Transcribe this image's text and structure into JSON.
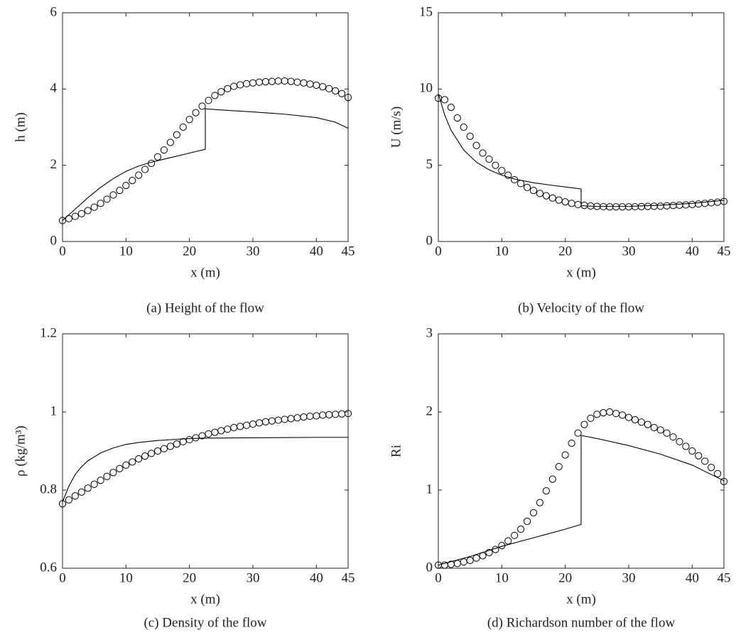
{
  "chart_data": [
    {
      "type": "line",
      "title": "(a) Height of the flow",
      "xlabel": "x (m)",
      "ylabel": "h (m)",
      "xlim": [
        0,
        45
      ],
      "xticks": [
        0,
        10,
        20,
        30,
        40,
        45
      ],
      "ylim": [
        0,
        6
      ],
      "yticks": [
        0,
        2,
        4,
        6
      ],
      "series": [
        {
          "style": "line",
          "color": "#000000",
          "x": [
            0,
            2,
            4,
            6,
            8,
            10,
            12,
            14,
            16,
            18,
            20,
            22.5,
            22.5,
            25,
            30,
            35,
            40,
            43,
            45
          ],
          "values": [
            0.55,
            0.85,
            1.15,
            1.42,
            1.65,
            1.84,
            1.98,
            2.08,
            2.16,
            2.24,
            2.32,
            2.42,
            3.48,
            3.45,
            3.4,
            3.34,
            3.25,
            3.13,
            2.97
          ]
        },
        {
          "style": "marker",
          "color": "#000000",
          "x": [
            0,
            1,
            2,
            3,
            4,
            5,
            6,
            7,
            8,
            9,
            10,
            11,
            12,
            13,
            14,
            15,
            16,
            17,
            18,
            19,
            20,
            21,
            22,
            23,
            24,
            25,
            26,
            27,
            28,
            29,
            30,
            31,
            32,
            33,
            34,
            35,
            36,
            37,
            38,
            39,
            40,
            41,
            42,
            43,
            44,
            45
          ],
          "values": [
            0.55,
            0.6,
            0.66,
            0.73,
            0.81,
            0.9,
            1.0,
            1.11,
            1.22,
            1.34,
            1.47,
            1.6,
            1.74,
            1.89,
            2.05,
            2.22,
            2.4,
            2.6,
            2.8,
            3.0,
            3.2,
            3.38,
            3.55,
            3.7,
            3.83,
            3.93,
            4.01,
            4.07,
            4.11,
            4.14,
            4.16,
            4.18,
            4.19,
            4.2,
            4.21,
            4.21,
            4.2,
            4.18,
            4.16,
            4.13,
            4.1,
            4.06,
            4.01,
            3.95,
            3.88,
            3.78
          ]
        }
      ]
    },
    {
      "type": "line",
      "title": "(b) Velocity of the flow",
      "xlabel": "x (m)",
      "ylabel": "U (m/s)",
      "xlim": [
        0,
        45
      ],
      "xticks": [
        0,
        10,
        20,
        30,
        40,
        45
      ],
      "ylim": [
        0,
        15
      ],
      "yticks": [
        0,
        5,
        10,
        15
      ],
      "series": [
        {
          "style": "line",
          "color": "#000000",
          "x": [
            0,
            1,
            2,
            4,
            6,
            8,
            10,
            12,
            15,
            18,
            20,
            22.5,
            22.5,
            25,
            30,
            35,
            40,
            45
          ],
          "values": [
            9.7,
            8.3,
            7.3,
            6.0,
            5.2,
            4.7,
            4.35,
            4.1,
            3.85,
            3.68,
            3.58,
            3.45,
            2.35,
            2.3,
            2.3,
            2.38,
            2.5,
            2.7
          ]
        },
        {
          "style": "marker",
          "color": "#000000",
          "x": [
            0,
            1,
            2,
            3,
            4,
            5,
            6,
            7,
            8,
            9,
            10,
            11,
            12,
            13,
            14,
            15,
            16,
            17,
            18,
            19,
            20,
            21,
            22,
            23,
            24,
            25,
            26,
            27,
            28,
            29,
            30,
            31,
            32,
            33,
            34,
            35,
            36,
            37,
            38,
            39,
            40,
            41,
            42,
            43,
            44,
            45
          ],
          "values": [
            9.4,
            9.3,
            8.8,
            8.1,
            7.5,
            6.9,
            6.3,
            5.8,
            5.4,
            5.0,
            4.65,
            4.35,
            4.05,
            3.8,
            3.55,
            3.35,
            3.15,
            3.0,
            2.85,
            2.72,
            2.6,
            2.5,
            2.42,
            2.37,
            2.33,
            2.3,
            2.28,
            2.27,
            2.27,
            2.27,
            2.27,
            2.28,
            2.29,
            2.3,
            2.31,
            2.32,
            2.34,
            2.36,
            2.38,
            2.4,
            2.43,
            2.46,
            2.5,
            2.54,
            2.58,
            2.63
          ]
        }
      ]
    },
    {
      "type": "line",
      "title": "(c) Density of the flow",
      "xlabel": "x (m)",
      "ylabel": "ρ (kg/m³)",
      "xlim": [
        0,
        45
      ],
      "xticks": [
        0,
        10,
        20,
        30,
        40,
        45
      ],
      "ylim": [
        0.6,
        1.2
      ],
      "yticks": [
        0.6,
        0.8,
        1,
        1.2
      ],
      "series": [
        {
          "style": "line",
          "color": "#000000",
          "x": [
            0,
            1,
            2,
            3,
            4,
            6,
            8,
            10,
            12,
            15,
            20,
            22.5,
            30,
            40,
            45
          ],
          "values": [
            0.77,
            0.81,
            0.84,
            0.86,
            0.875,
            0.895,
            0.908,
            0.917,
            0.922,
            0.927,
            0.932,
            0.933,
            0.934,
            0.935,
            0.935
          ]
        },
        {
          "style": "marker",
          "color": "#000000",
          "x": [
            0,
            1,
            2,
            3,
            4,
            5,
            6,
            7,
            8,
            9,
            10,
            11,
            12,
            13,
            14,
            15,
            16,
            17,
            18,
            19,
            20,
            21,
            22,
            23,
            24,
            25,
            26,
            27,
            28,
            29,
            30,
            31,
            32,
            33,
            34,
            35,
            36,
            37,
            38,
            39,
            40,
            41,
            42,
            43,
            44,
            45
          ],
          "values": [
            0.765,
            0.775,
            0.785,
            0.795,
            0.805,
            0.815,
            0.825,
            0.835,
            0.845,
            0.855,
            0.864,
            0.872,
            0.88,
            0.887,
            0.894,
            0.9,
            0.906,
            0.912,
            0.918,
            0.924,
            0.929,
            0.934,
            0.939,
            0.944,
            0.948,
            0.952,
            0.956,
            0.96,
            0.963,
            0.966,
            0.969,
            0.972,
            0.975,
            0.977,
            0.979,
            0.981,
            0.983,
            0.985,
            0.987,
            0.989,
            0.99,
            0.992,
            0.993,
            0.994,
            0.995,
            0.996
          ]
        }
      ]
    },
    {
      "type": "line",
      "title": "(d) Richardson number of the flow",
      "xlabel": "x (m)",
      "ylabel": "Ri",
      "xlim": [
        0,
        45
      ],
      "xticks": [
        0,
        10,
        20,
        30,
        40,
        45
      ],
      "ylim": [
        0,
        3
      ],
      "yticks": [
        0,
        1,
        2,
        3
      ],
      "series": [
        {
          "style": "line",
          "color": "#000000",
          "x": [
            0,
            5,
            10,
            15,
            20,
            22.5,
            22.5,
            25,
            30,
            35,
            40,
            45
          ],
          "values": [
            0.04,
            0.15,
            0.28,
            0.39,
            0.5,
            0.56,
            1.7,
            1.66,
            1.57,
            1.46,
            1.32,
            1.12
          ]
        },
        {
          "style": "marker",
          "color": "#000000",
          "x": [
            0,
            1,
            2,
            3,
            4,
            5,
            6,
            7,
            8,
            9,
            10,
            11,
            12,
            13,
            14,
            15,
            16,
            17,
            18,
            19,
            20,
            21,
            22,
            23,
            24,
            25,
            26,
            27,
            28,
            29,
            30,
            31,
            32,
            33,
            34,
            35,
            36,
            37,
            38,
            39,
            40,
            41,
            42,
            43,
            44,
            45
          ],
          "values": [
            0.04,
            0.04,
            0.05,
            0.06,
            0.08,
            0.1,
            0.13,
            0.16,
            0.2,
            0.24,
            0.29,
            0.35,
            0.42,
            0.5,
            0.6,
            0.71,
            0.84,
            0.99,
            1.14,
            1.3,
            1.45,
            1.6,
            1.73,
            1.84,
            1.92,
            1.97,
            1.99,
            2.0,
            1.98,
            1.96,
            1.93,
            1.9,
            1.87,
            1.84,
            1.8,
            1.77,
            1.73,
            1.68,
            1.62,
            1.56,
            1.5,
            1.44,
            1.37,
            1.29,
            1.21,
            1.11
          ]
        }
      ]
    }
  ]
}
